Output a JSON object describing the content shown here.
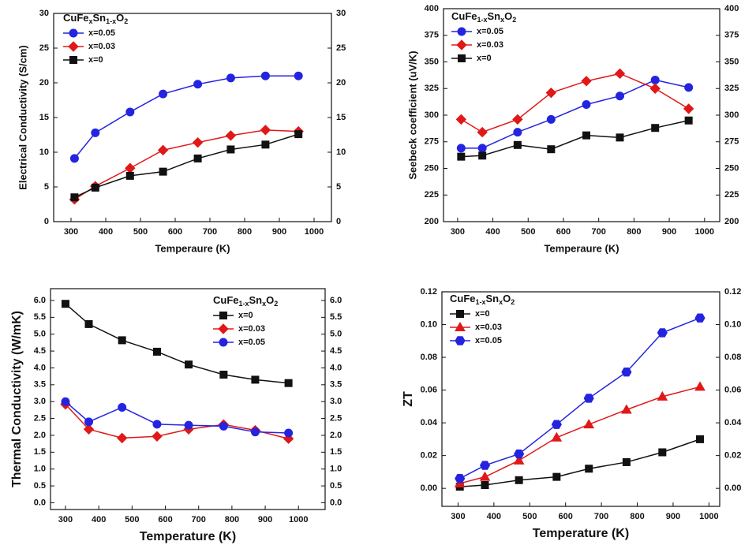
{
  "chart_data": [
    {
      "type": "line",
      "legend_title": [
        "CuFe",
        "x",
        "Sn",
        "1-x",
        "O",
        "2"
      ],
      "xlabel": "Temperaure (K)",
      "ylabel": "Electrical  Conductivity (S/cm)",
      "x": [
        310,
        370,
        470,
        565,
        665,
        760,
        860,
        955
      ],
      "series": [
        {
          "name": "x=0.05",
          "color": "#2424e0",
          "marker": "circle",
          "values": [
            9.1,
            12.8,
            15.8,
            18.4,
            19.8,
            20.7,
            21.0,
            21.0
          ]
        },
        {
          "name": "x=0.03",
          "color": "#e01818",
          "marker": "diamond",
          "values": [
            3.2,
            5.1,
            7.7,
            10.3,
            11.4,
            12.4,
            13.2,
            13.0
          ]
        },
        {
          "name": "x=0",
          "color": "#111111",
          "marker": "square",
          "values": [
            3.5,
            4.9,
            6.6,
            7.2,
            9.1,
            10.4,
            11.1,
            12.6
          ]
        }
      ],
      "xlim": [
        250,
        1050
      ],
      "ylim": [
        0,
        30
      ],
      "xticks": [
        300,
        400,
        500,
        600,
        700,
        800,
        900,
        1000
      ],
      "yticks": [
        0,
        5,
        10,
        15,
        20,
        25,
        30
      ],
      "mirror_y_ticks": true
    },
    {
      "type": "line",
      "legend_title": [
        "CuFe",
        "1-x",
        "Sn",
        "x",
        "O",
        "2"
      ],
      "xlabel": "Temperaure (K)",
      "ylabel": "Seebeck coefficient (uV/K)",
      "x": [
        310,
        370,
        470,
        565,
        665,
        760,
        860,
        955
      ],
      "series": [
        {
          "name": "x=0.05",
          "color": "#2424e0",
          "marker": "circle",
          "values": [
            269,
            269,
            284,
            296,
            310,
            318,
            333,
            326
          ]
        },
        {
          "name": "x=0.03",
          "color": "#e01818",
          "marker": "diamond",
          "values": [
            296,
            284,
            296,
            321,
            332,
            339,
            325,
            306
          ]
        },
        {
          "name": "x=0",
          "color": "#111111",
          "marker": "square",
          "values": [
            261,
            262,
            272,
            268,
            281,
            279,
            288,
            295
          ]
        }
      ],
      "xlim": [
        260,
        1043
      ],
      "ylim": [
        200,
        400
      ],
      "xticks": [
        300,
        400,
        500,
        600,
        700,
        800,
        900,
        1000
      ],
      "yticks": [
        200,
        225,
        250,
        275,
        300,
        325,
        350,
        375,
        400
      ],
      "mirror_y_ticks": true
    },
    {
      "type": "line",
      "legend_title": [
        "CuFe",
        "1-x",
        "Sn",
        "x",
        "O",
        "2"
      ],
      "xlabel": "Temperature (K)",
      "ylabel": "Thermal Conductivity (W/mK)",
      "x": [
        300,
        370,
        470,
        575,
        670,
        775,
        870,
        970
      ],
      "series": [
        {
          "name": "x=0",
          "color": "#111111",
          "marker": "square",
          "values": [
            5.9,
            5.3,
            4.82,
            4.48,
            4.1,
            3.8,
            3.65,
            3.55
          ]
        },
        {
          "name": "x=0.03",
          "color": "#e01818",
          "marker": "diamond",
          "values": [
            2.92,
            2.18,
            1.92,
            1.97,
            2.18,
            2.32,
            2.15,
            1.9
          ]
        },
        {
          "name": "x=0.05",
          "color": "#2424e0",
          "marker": "circle",
          "values": [
            3.0,
            2.4,
            2.83,
            2.33,
            2.3,
            2.27,
            2.1,
            2.07
          ]
        }
      ],
      "xlim": [
        255,
        1080
      ],
      "ylim": [
        -0.2,
        6.35
      ],
      "xticks": [
        300,
        400,
        500,
        600,
        700,
        800,
        900,
        1000
      ],
      "yticks": [
        {
          "value": 0,
          "label": "0.0"
        },
        0.5,
        {
          "value": 1,
          "label": "1.0"
        },
        1.5,
        {
          "value": 2,
          "label": "2.0"
        },
        2.5,
        {
          "value": 3,
          "label": "3.0"
        },
        3.5,
        {
          "value": 4,
          "label": "4.0"
        },
        4.5,
        {
          "value": 5,
          "label": "5.0"
        },
        5.5,
        {
          "value": 6,
          "label": "6.0"
        }
      ],
      "mirror_y_ticks": true
    },
    {
      "type": "line",
      "legend_title": [
        "CuFe",
        "1-x",
        "Sn",
        "x",
        "O",
        "2"
      ],
      "xlabel": "Temperature (K)",
      "ylabel": "ZT",
      "x": [
        305,
        375,
        470,
        575,
        665,
        770,
        870,
        975
      ],
      "series": [
        {
          "name": "x=0",
          "color": "#111111",
          "marker": "square",
          "values": [
            0.001,
            0.002,
            0.005,
            0.007,
            0.012,
            0.016,
            0.022,
            0.03
          ]
        },
        {
          "name": "x=0.03",
          "color": "#e01818",
          "marker": "triangle",
          "values": [
            0.003,
            0.007,
            0.017,
            0.031,
            0.039,
            0.048,
            0.056,
            0.062
          ]
        },
        {
          "name": "x=0.05",
          "color": "#2424e0",
          "marker": "hexagon",
          "values": [
            0.006,
            0.014,
            0.021,
            0.039,
            0.055,
            0.071,
            0.095,
            0.104
          ]
        }
      ],
      "xlim": [
        255,
        1030
      ],
      "ylim": [
        -0.011,
        0.12
      ],
      "xticks": [
        300,
        400,
        500,
        600,
        700,
        800,
        900,
        1000
      ],
      "yticks": [
        {
          "value": 0,
          "label": "0.00"
        },
        0.02,
        0.04,
        0.06,
        0.08,
        {
          "value": 0.1,
          "label": "0.10"
        },
        0.12
      ],
      "mirror_y_ticks": true
    }
  ]
}
